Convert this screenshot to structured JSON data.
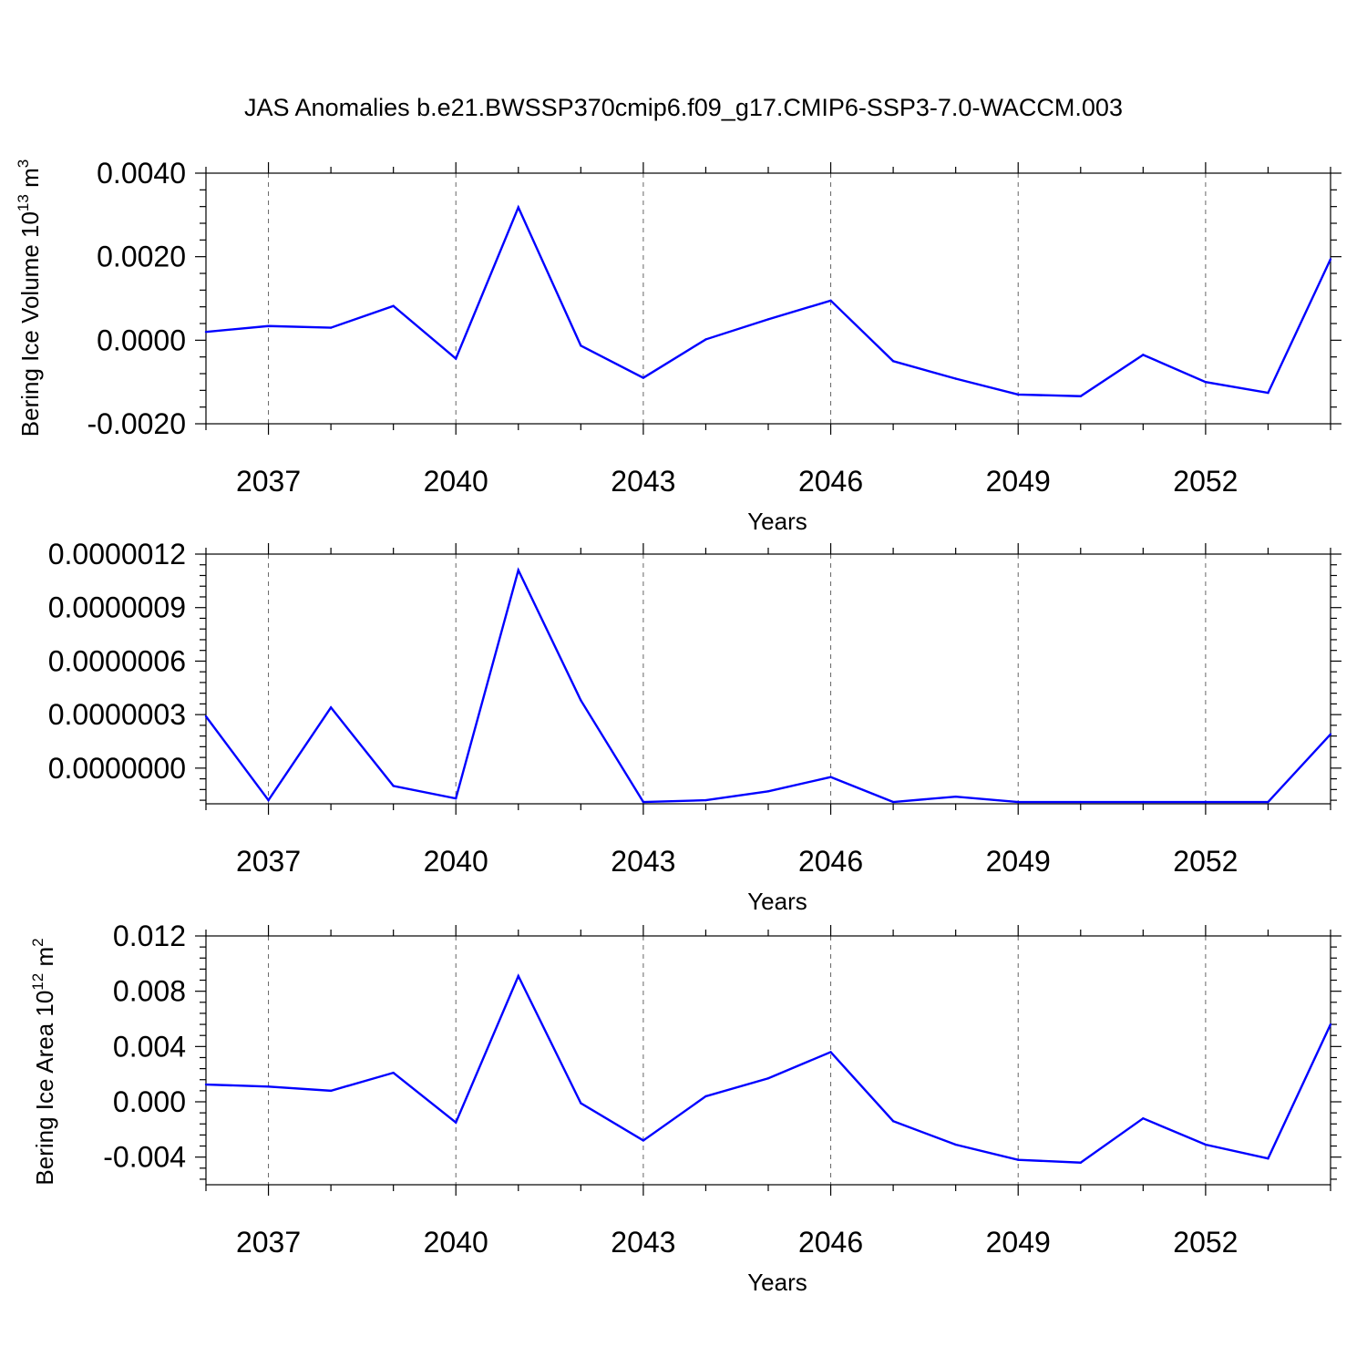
{
  "chart_data": [
    {
      "type": "line",
      "title": "JAS Anomalies b.e21.BWSSP370cmip6.f09_g17.CMIP6-SSP3-7.0-WACCM.003",
      "ylabel": "Bering Ice Volume 10",
      "ylabel_exp": "13",
      "ylabel_unit": " m",
      "ylabel_unit_exp": "3",
      "xlabel": "Years",
      "xlim": [
        2036,
        2054
      ],
      "ylim": [
        -0.002,
        0.004
      ],
      "yticks": [
        -0.002,
        0.0,
        0.002,
        0.004
      ],
      "ytick_labels": [
        "-0.0020",
        "0.0000",
        "0.0020",
        "0.0040"
      ],
      "xticks": [
        2037,
        2040,
        2043,
        2046,
        2049,
        2052
      ],
      "xtick_labels": [
        "2037",
        "2040",
        "2043",
        "2046",
        "2049",
        "2052"
      ],
      "grid": "dashed vertical at labeled years",
      "x": [
        2036,
        2037,
        2038,
        2039,
        2040,
        2041,
        2042,
        2043,
        2044,
        2045,
        2046,
        2047,
        2048,
        2049,
        2050,
        2051,
        2052,
        2053,
        2054
      ],
      "series": [
        {
          "color": "#0000ff",
          "values": [
            0.0002,
            0.00034,
            0.0003,
            0.00082,
            -0.00044,
            0.00318,
            -0.00013,
            -0.0009,
            2e-05,
            0.0005,
            0.00095,
            -0.0005,
            -0.00092,
            -0.0013,
            -0.00134,
            -0.00035,
            -0.001,
            -0.00126,
            0.00194
          ]
        }
      ]
    },
    {
      "type": "line",
      "title": "",
      "ylabel": "",
      "xlabel": "Years",
      "xlim": [
        2036,
        2054
      ],
      "ylim": [
        -2e-07,
        1.2e-06
      ],
      "yticks": [
        0.0,
        3e-07,
        6e-07,
        9e-07,
        1.2e-06
      ],
      "ytick_labels": [
        "0.0000000",
        "0.0000003",
        "0.0000006",
        "0.0000009",
        "0.0000012"
      ],
      "xticks": [
        2037,
        2040,
        2043,
        2046,
        2049,
        2052
      ],
      "xtick_labels": [
        "2037",
        "2040",
        "2043",
        "2046",
        "2049",
        "2052"
      ],
      "grid": "dashed vertical at labeled years",
      "x": [
        2036,
        2037,
        2038,
        2039,
        2040,
        2041,
        2042,
        2043,
        2044,
        2045,
        2046,
        2047,
        2048,
        2049,
        2050,
        2051,
        2052,
        2053,
        2054
      ],
      "series": [
        {
          "color": "#0000ff",
          "values": [
            2.9e-07,
            -1.8e-07,
            3.4e-07,
            -1e-07,
            -1.7e-07,
            1.11e-06,
            3.8e-07,
            -1.9e-07,
            -1.8e-07,
            -1.3e-07,
            -5e-08,
            -1.9e-07,
            -1.6e-07,
            -1.9e-07,
            -1.9e-07,
            -1.9e-07,
            -1.9e-07,
            -1.9e-07,
            1.9e-07
          ]
        }
      ]
    },
    {
      "type": "line",
      "title": "",
      "ylabel": "Bering Ice Area 10",
      "ylabel_exp": "12",
      "ylabel_unit": " m",
      "ylabel_unit_exp": "2",
      "xlabel": "Years",
      "xlim": [
        2036,
        2054
      ],
      "ylim": [
        -0.006,
        0.012
      ],
      "yticks": [
        -0.004,
        0.0,
        0.004,
        0.008,
        0.012
      ],
      "ytick_labels": [
        "-0.004",
        "0.000",
        "0.004",
        "0.008",
        "0.012"
      ],
      "xticks": [
        2037,
        2040,
        2043,
        2046,
        2049,
        2052
      ],
      "xtick_labels": [
        "2037",
        "2040",
        "2043",
        "2046",
        "2049",
        "2052"
      ],
      "grid": "dashed vertical at labeled years",
      "x": [
        2036,
        2037,
        2038,
        2039,
        2040,
        2041,
        2042,
        2043,
        2044,
        2045,
        2046,
        2047,
        2048,
        2049,
        2050,
        2051,
        2052,
        2053,
        2054
      ],
      "series": [
        {
          "color": "#0000ff",
          "values": [
            0.00125,
            0.0011,
            0.0008,
            0.0021,
            -0.0015,
            0.0091,
            -0.0001,
            -0.0028,
            0.0004,
            0.0017,
            0.0036,
            -0.0014,
            -0.0031,
            -0.0042,
            -0.0044,
            -0.0012,
            -0.0031,
            -0.0041,
            0.0056
          ]
        }
      ]
    }
  ]
}
